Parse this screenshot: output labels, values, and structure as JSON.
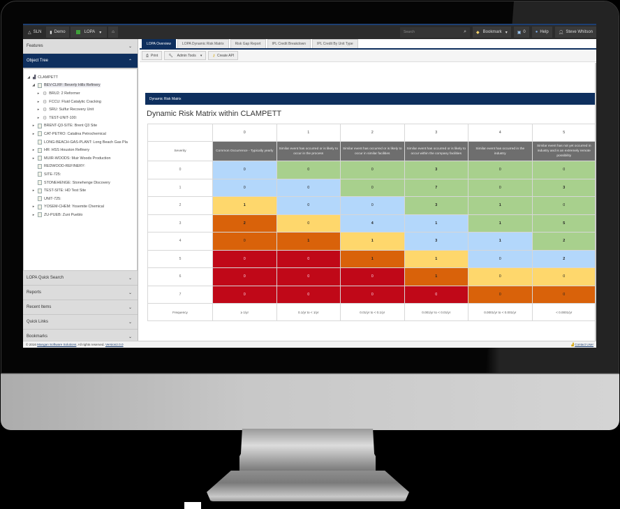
{
  "topbar": {
    "items": [
      {
        "icon": "warning-icon",
        "label": "SLN"
      },
      {
        "icon": "database-icon",
        "label": "Demo"
      },
      {
        "icon": "module-icon",
        "label": "LOPA"
      },
      {
        "icon": "home-icon",
        "label": ""
      }
    ],
    "search_placeholder": "Search",
    "bookmark_label": "Bookmark",
    "notifications_count": "0",
    "help_label": "Help",
    "user_name": "Steve Whitson"
  },
  "sidebar": {
    "sections_top": [
      {
        "label": "Features",
        "state": "collapsed"
      },
      {
        "label": "Object Tree",
        "state": "expanded"
      }
    ],
    "tree": [
      {
        "level": 0,
        "caret": "◢",
        "icon": "org",
        "label": "CLAMPETT",
        "selected": false
      },
      {
        "level": 1,
        "caret": "◢",
        "icon": "building",
        "label": "BEV-CLRF: Beverly Hills Refinery",
        "selected": true
      },
      {
        "level": 2,
        "caret": "▸",
        "icon": "gear",
        "label": "BRU2: 2 Reformer",
        "selected": false
      },
      {
        "level": 2,
        "caret": "▸",
        "icon": "gear",
        "label": "FCCU: Fluid Catalytic Cracking",
        "selected": false
      },
      {
        "level": 2,
        "caret": "▸",
        "icon": "gear",
        "label": "SRU: Sulfur Recovery Unit",
        "selected": false
      },
      {
        "level": 2,
        "caret": "▸",
        "icon": "gear",
        "label": "TEST-UNIT-100:",
        "selected": false
      },
      {
        "level": 1,
        "caret": "▸",
        "icon": "building",
        "label": "BRENT-Q3-SITE: Brent Q3 Site",
        "selected": false
      },
      {
        "level": 1,
        "caret": "▸",
        "icon": "building",
        "label": "CAT-PETRO: Catalina Petrochemical",
        "selected": false
      },
      {
        "level": 1,
        "caret": "",
        "icon": "building",
        "label": "LONG-BEACH-GAS-PLANT: Long Beach Gas Pla",
        "selected": false
      },
      {
        "level": 1,
        "caret": "▸",
        "icon": "building",
        "label": "HR: HSS Houston Refinery",
        "selected": false
      },
      {
        "level": 1,
        "caret": "▸",
        "icon": "building",
        "label": "MUIR-WOODS: Muir Woods Production",
        "selected": false
      },
      {
        "level": 1,
        "caret": "",
        "icon": "building",
        "label": "REDWOOD-REFINERY:",
        "selected": false
      },
      {
        "level": 1,
        "caret": "",
        "icon": "building",
        "label": "SITE-725:",
        "selected": false
      },
      {
        "level": 1,
        "caret": "",
        "icon": "building",
        "label": "STONEHENGE: Stonehenge Discovery",
        "selected": false
      },
      {
        "level": 1,
        "caret": "▸",
        "icon": "building",
        "label": "TEST-SITE: HD Test Site",
        "selected": false
      },
      {
        "level": 1,
        "caret": "",
        "icon": "building",
        "label": "UNIT-725:",
        "selected": false
      },
      {
        "level": 1,
        "caret": "▸",
        "icon": "building",
        "label": "YOSEM-CHEM: Yosemite Chemical",
        "selected": false
      },
      {
        "level": 1,
        "caret": "▸",
        "icon": "building",
        "label": "ZU-PUEB: Zuni Pueblo",
        "selected": false
      }
    ],
    "sections_bottom": [
      {
        "label": "LOPA Quick Search"
      },
      {
        "label": "Reports"
      },
      {
        "label": "Recent Items"
      },
      {
        "label": "Quick Links"
      },
      {
        "label": "Bookmarks"
      }
    ]
  },
  "main": {
    "tabs": [
      {
        "label": "LOPA Overview",
        "active": true
      },
      {
        "label": "LOPA Dynamic Risk Matrix",
        "active": false
      },
      {
        "label": "Risk Gap Report",
        "active": false
      },
      {
        "label": "IPL Credit Breakdown",
        "active": false
      },
      {
        "label": "IPL Credit By Unit Type",
        "active": false
      }
    ],
    "toolbar": {
      "print_label": "Print",
      "admin_tools_label": "Admin Tools",
      "create_api_label": "Create API"
    },
    "panel_header": "Dynamic Risk Matrix",
    "matrix_title": "Dynamic Risk Matrix within CLAMPETT",
    "matrix": {
      "severity_label": "Severity",
      "frequency_label": "Frequency",
      "column_indices": [
        "0",
        "1",
        "2",
        "3",
        "4",
        "5"
      ],
      "column_descriptions": [
        "Common Occurrence - Typically yearly",
        "Similar event has occurred or is likely to occur in the process",
        "Similar event has occurred or is likely to occur in similar facilities",
        "Similar event has occurred or is likely to occur within the company facilities",
        "Similar event has occurred in the industry",
        "Similar event has not yet occurred in industry and is an extremely remote possibility"
      ],
      "frequencies": [
        "≥ 1/yr",
        "0.1/yr to < 1/yr",
        "0.01/yr to < 0.1/yr",
        "0.001/yr to < 0.01/yr",
        "0.0001/yr to < 0.001/yr",
        "< 0.0001/yr"
      ],
      "rows": [
        {
          "severity": "0",
          "values": [
            "0",
            "0",
            "0",
            "3",
            "0",
            "0"
          ],
          "colors": [
            "blue",
            "green",
            "green",
            "green",
            "green",
            "green"
          ]
        },
        {
          "severity": "1",
          "values": [
            "0",
            "0",
            "0",
            "7",
            "0",
            "3"
          ],
          "colors": [
            "blue",
            "blue",
            "green",
            "green",
            "green",
            "green"
          ]
        },
        {
          "severity": "2",
          "values": [
            "1",
            "0",
            "0",
            "3",
            "1",
            "0"
          ],
          "colors": [
            "yellow",
            "blue",
            "blue",
            "green",
            "green",
            "green"
          ]
        },
        {
          "severity": "3",
          "values": [
            "2",
            "0",
            "4",
            "1",
            "1",
            "5"
          ],
          "colors": [
            "orange",
            "yellow",
            "blue",
            "blue",
            "green",
            "green"
          ]
        },
        {
          "severity": "4",
          "values": [
            "0",
            "1",
            "1",
            "3",
            "1",
            "2"
          ],
          "colors": [
            "orange",
            "orange",
            "yellow",
            "blue",
            "blue",
            "green"
          ]
        },
        {
          "severity": "5",
          "values": [
            "0",
            "0",
            "1",
            "1",
            "0",
            "2"
          ],
          "colors": [
            "red",
            "red",
            "orange",
            "yellow",
            "blue",
            "blue"
          ]
        },
        {
          "severity": "6",
          "values": [
            "0",
            "0",
            "0",
            "1",
            "0",
            "0"
          ],
          "colors": [
            "red",
            "red",
            "red",
            "orange",
            "yellow",
            "yellow"
          ]
        },
        {
          "severity": "7",
          "values": [
            "0",
            "0",
            "0",
            "0",
            "0",
            "0"
          ],
          "colors": [
            "red",
            "red",
            "red",
            "red",
            "orange",
            "orange"
          ]
        }
      ]
    }
  },
  "footer": {
    "copyright_prefix": "© 2016",
    "company_link": "Mangan Software Solutions",
    "rights_text": ". All rights reserved.",
    "version_link": "Version2.0.0",
    "contact_label": "Contact User"
  },
  "colors": {
    "brand_navy": "#0e2f5e",
    "matrix_blue": "#b3d7fb",
    "matrix_green": "#a8d08d",
    "matrix_yellow": "#fed76c",
    "matrix_orange": "#d9620a",
    "matrix_red": "#c00818",
    "header_gray": "#6e6e6e"
  }
}
